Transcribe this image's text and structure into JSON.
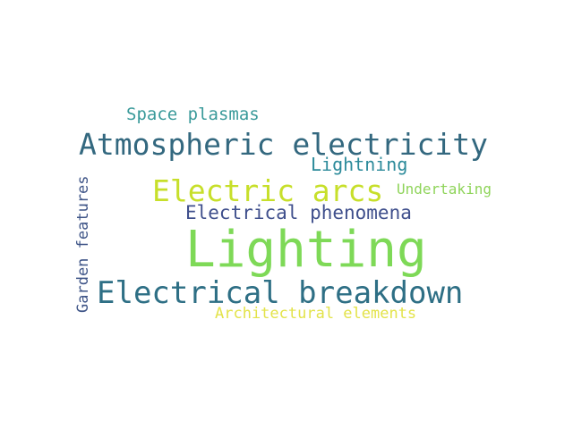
{
  "words": [
    {
      "text": "Space plasmas",
      "color": "#3a9a9a"
    },
    {
      "text": "Atmospheric electricity",
      "color": "#33687f"
    },
    {
      "text": "Lightning",
      "color": "#2b8a9a"
    },
    {
      "text": "Electric arcs",
      "color": "#c7df2a"
    },
    {
      "text": "Undertaking",
      "color": "#8fd45a"
    },
    {
      "text": "Electrical phenomena",
      "color": "#3f4f8c"
    },
    {
      "text": "Lighting",
      "color": "#7ed957"
    },
    {
      "text": "Electrical breakdown",
      "color": "#2e6f85"
    },
    {
      "text": "Architectural elements",
      "color": "#e3e34a"
    },
    {
      "text": "Garden features",
      "color": "#3e5487"
    }
  ]
}
